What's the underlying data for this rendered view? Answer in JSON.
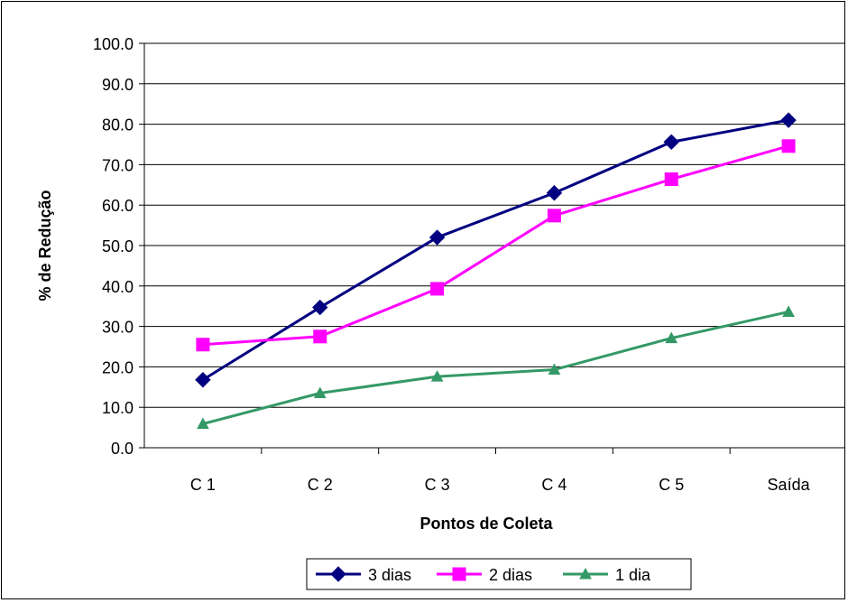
{
  "chart_data": {
    "type": "line",
    "xlabel": "Pontos de Coleta",
    "ylabel": "% de Redução",
    "categories": [
      "C 1",
      "C 2",
      "C 3",
      "C 4",
      "C 5",
      "Saída"
    ],
    "ylim": [
      0,
      100
    ],
    "yticks": [
      "0.0",
      "10.0",
      "20.0",
      "30.0",
      "40.0",
      "50.0",
      "60.0",
      "70.0",
      "80.0",
      "90.0",
      "100.0"
    ],
    "grid": true,
    "legend_position": "bottom",
    "series": [
      {
        "name": "3 dias",
        "color": "#000080",
        "marker": "diamond",
        "values": [
          16.8,
          34.7,
          52.0,
          63.0,
          75.6,
          81.0
        ]
      },
      {
        "name": "2 dias",
        "color": "#ff00ff",
        "marker": "square",
        "values": [
          25.5,
          27.5,
          39.3,
          57.4,
          66.4,
          74.6
        ]
      },
      {
        "name": "1 dia",
        "color": "#339966",
        "marker": "triangle",
        "values": [
          5.9,
          13.5,
          17.6,
          19.3,
          27.1,
          33.6
        ]
      }
    ]
  }
}
